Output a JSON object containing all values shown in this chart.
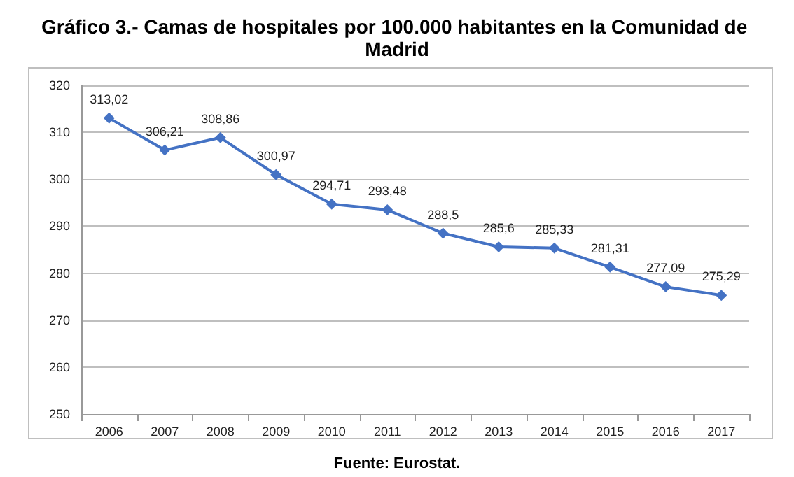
{
  "chart_data": {
    "type": "line",
    "title": "Gráfico 3.- Camas de hospitales por 100.000 habitantes en la Comunidad de Madrid",
    "categories": [
      "2006",
      "2007",
      "2008",
      "2009",
      "2010",
      "2011",
      "2012",
      "2013",
      "2014",
      "2015",
      "2016",
      "2017"
    ],
    "series": [
      {
        "color": "#4472c4",
        "values": [
          313.02,
          306.21,
          308.86,
          300.97,
          294.71,
          293.48,
          288.5,
          285.6,
          285.33,
          281.31,
          277.09,
          275.29
        ],
        "value_labels": [
          "313,02",
          "306,21",
          "308,86",
          "300,97",
          "294,71",
          "293,48",
          "288,5",
          "285,6",
          "285,33",
          "281,31",
          "277,09",
          "275,29"
        ]
      }
    ],
    "ylim": [
      250,
      320
    ],
    "yticks": [
      250,
      260,
      270,
      280,
      290,
      300,
      310,
      320
    ],
    "grid": "y",
    "marker": "diamond",
    "line_style": "solid",
    "annotations": [
      "Fuente: Eurostat."
    ]
  }
}
